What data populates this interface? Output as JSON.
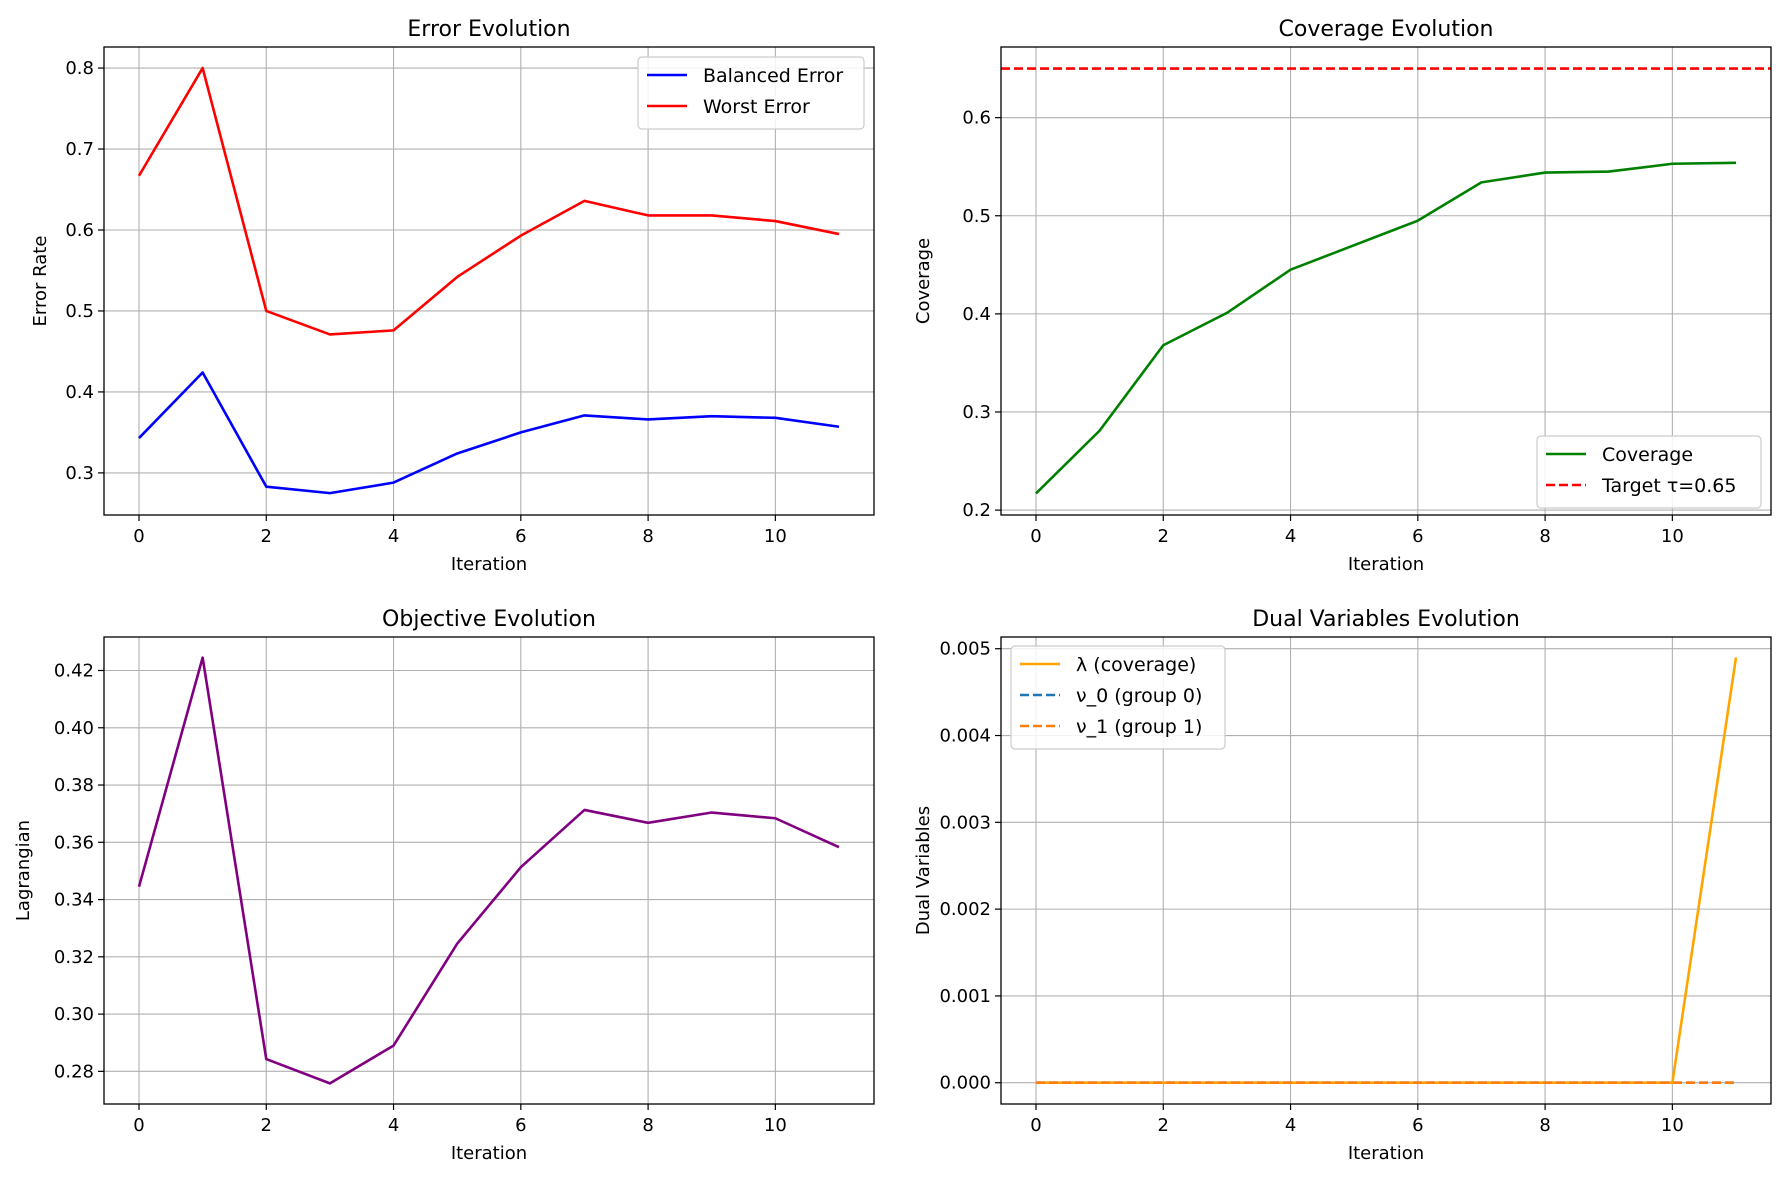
{
  "chart_data": [
    {
      "type": "line",
      "title": "Error Evolution",
      "xlabel": "Iteration",
      "ylabel": "Error Rate",
      "x": [
        0,
        1,
        2,
        3,
        4,
        5,
        6,
        7,
        8,
        9,
        10,
        11
      ],
      "xlim": [
        -0.55,
        11.55
      ],
      "ylim": [
        0.248,
        0.826
      ],
      "xticks": [
        0,
        2,
        4,
        6,
        8,
        10
      ],
      "yticks": [
        0.3,
        0.4,
        0.5,
        0.6,
        0.7,
        0.8
      ],
      "ytick_labels": [
        "0.3",
        "0.4",
        "0.5",
        "0.6",
        "0.7",
        "0.8"
      ],
      "grid": true,
      "legend": "upper right",
      "series": [
        {
          "name": "Balanced Error",
          "color": "#0000ff",
          "style": "solid",
          "values": [
            0.343,
            0.424,
            0.283,
            0.275,
            0.288,
            0.324,
            0.35,
            0.371,
            0.366,
            0.37,
            0.368,
            0.357
          ]
        },
        {
          "name": "Worst Error",
          "color": "#ff0000",
          "style": "solid",
          "values": [
            0.667,
            0.8,
            0.5,
            0.471,
            0.476,
            0.542,
            0.593,
            0.636,
            0.618,
            0.618,
            0.611,
            0.595
          ]
        }
      ]
    },
    {
      "type": "line",
      "title": "Coverage Evolution",
      "xlabel": "Iteration",
      "ylabel": "Coverage",
      "x": [
        0,
        1,
        2,
        3,
        4,
        5,
        6,
        7,
        8,
        9,
        10,
        11
      ],
      "xlim": [
        -0.55,
        11.55
      ],
      "ylim": [
        0.195,
        0.672
      ],
      "xticks": [
        0,
        2,
        4,
        6,
        8,
        10
      ],
      "yticks": [
        0.2,
        0.3,
        0.4,
        0.5,
        0.6
      ],
      "ytick_labels": [
        "0.2",
        "0.3",
        "0.4",
        "0.5",
        "0.6"
      ],
      "grid": true,
      "legend": "lower right",
      "series": [
        {
          "name": "Coverage",
          "color": "#008000",
          "style": "solid",
          "values": [
            0.217,
            0.281,
            0.368,
            0.401,
            0.445,
            0.47,
            0.495,
            0.534,
            0.544,
            0.545,
            0.553,
            0.554
          ]
        },
        {
          "name": "Target τ=0.65",
          "color": "#ff0000",
          "style": "dashed",
          "hline": 0.65
        }
      ]
    },
    {
      "type": "line",
      "title": "Objective Evolution",
      "xlabel": "Iteration",
      "ylabel": "Lagrangian",
      "x": [
        0,
        1,
        2,
        3,
        4,
        5,
        6,
        7,
        8,
        9,
        10,
        11
      ],
      "xlim": [
        -0.55,
        11.55
      ],
      "ylim": [
        0.2686,
        0.4317
      ],
      "xticks": [
        0,
        2,
        4,
        6,
        8,
        10
      ],
      "yticks": [
        0.28,
        0.3,
        0.32,
        0.34,
        0.36,
        0.38,
        0.4,
        0.42
      ],
      "ytick_labels": [
        "0.28",
        "0.30",
        "0.32",
        "0.34",
        "0.36",
        "0.38",
        "0.40",
        "0.42"
      ],
      "grid": true,
      "series": [
        {
          "name": "",
          "color": "#800080",
          "style": "solid",
          "values": [
            0.3445,
            0.4245,
            0.2843,
            0.2758,
            0.289,
            0.3246,
            0.3513,
            0.3713,
            0.3668,
            0.3704,
            0.3684,
            0.3583
          ]
        }
      ]
    },
    {
      "type": "line",
      "title": "Dual Variables Evolution",
      "xlabel": "Iteration",
      "ylabel": "Dual Variables",
      "x": [
        0,
        1,
        2,
        3,
        4,
        5,
        6,
        7,
        8,
        9,
        10,
        11
      ],
      "xlim": [
        -0.55,
        11.55
      ],
      "ylim": [
        -0.000245,
        0.005135
      ],
      "xticks": [
        0,
        2,
        4,
        6,
        8,
        10
      ],
      "yticks": [
        0.0,
        0.001,
        0.002,
        0.003,
        0.004,
        0.005
      ],
      "ytick_labels": [
        "0.000",
        "0.001",
        "0.002",
        "0.003",
        "0.004",
        "0.005"
      ],
      "grid": true,
      "legend": "upper left",
      "series": [
        {
          "name": "λ (coverage)",
          "color": "#ffa500",
          "style": "solid",
          "values": [
            0,
            0,
            0,
            0,
            0,
            0,
            0,
            0,
            0,
            0,
            0,
            0.0049
          ]
        },
        {
          "name": "ν_0 (group 0)",
          "color": "#1f77b4",
          "style": "dashed",
          "values": [
            0,
            0,
            0,
            0,
            0,
            0,
            0,
            0,
            0,
            0,
            0,
            0
          ]
        },
        {
          "name": "ν_1 (group 1)",
          "color": "#ff7f0e",
          "style": "dashed",
          "values": [
            0,
            0,
            0,
            0,
            0,
            0,
            0,
            0,
            0,
            0,
            0,
            0
          ]
        }
      ]
    }
  ]
}
